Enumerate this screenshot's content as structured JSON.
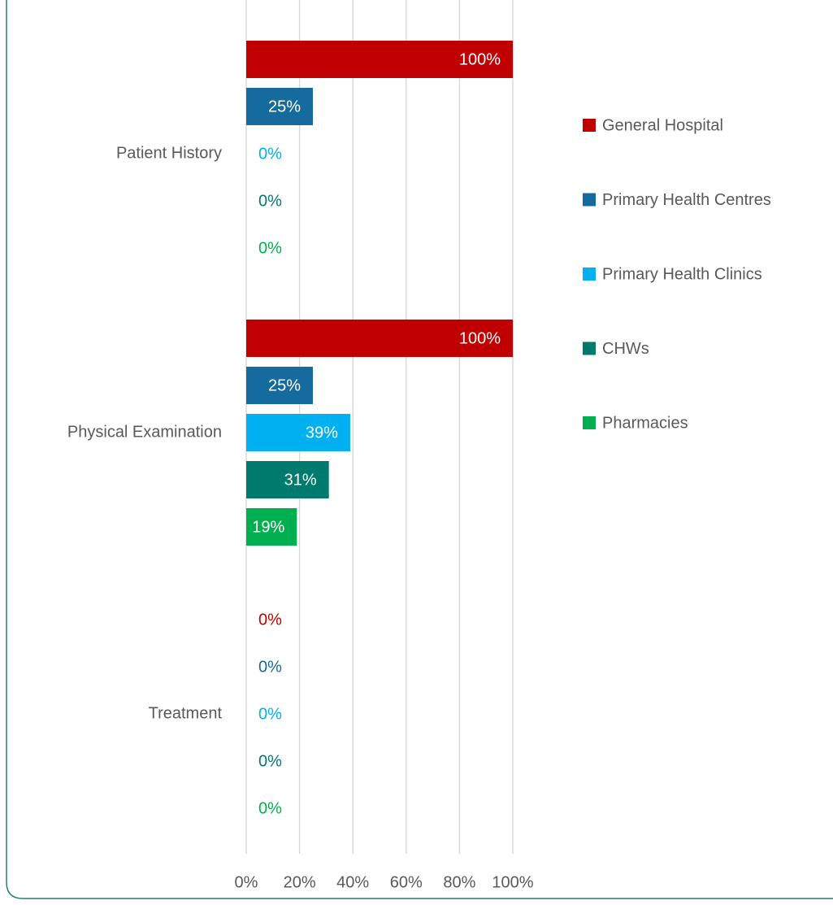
{
  "chart_data": {
    "type": "bar",
    "orientation": "horizontal",
    "categories": [
      "Patient History",
      "Physical Examination",
      "Treatment"
    ],
    "series": [
      {
        "name": "General Hospital",
        "color": "#c00000",
        "values": [
          100,
          100,
          0
        ],
        "value_labels": [
          "100%",
          "100%",
          "0%"
        ]
      },
      {
        "name": "Primary Health Centres",
        "color": "#166b9e",
        "values": [
          25,
          25,
          0
        ],
        "value_labels": [
          "25%",
          "25%",
          "0%"
        ]
      },
      {
        "name": "Primary Health Clinics",
        "color": "#00b0f0",
        "values": [
          0,
          39,
          0
        ],
        "value_labels": [
          "0%",
          "39%",
          "0%"
        ]
      },
      {
        "name": "CHWs",
        "color": "#007a6c",
        "values": [
          0,
          31,
          0
        ],
        "value_labels": [
          "0%",
          "31%",
          "0%"
        ]
      },
      {
        "name": "Pharmacies",
        "color": "#00b050",
        "values": [
          0,
          19,
          0
        ],
        "value_labels": [
          "0%",
          "19%",
          "0%"
        ]
      }
    ],
    "xlim": [
      0,
      100
    ],
    "xticks": [
      {
        "value": 0,
        "label": "0%"
      },
      {
        "value": 20,
        "label": "20%"
      },
      {
        "value": 40,
        "label": "40%"
      },
      {
        "value": 60,
        "label": "60%"
      },
      {
        "value": 80,
        "label": "80%"
      },
      {
        "value": 100,
        "label": "100%"
      }
    ],
    "grid": true,
    "legend": "right"
  }
}
